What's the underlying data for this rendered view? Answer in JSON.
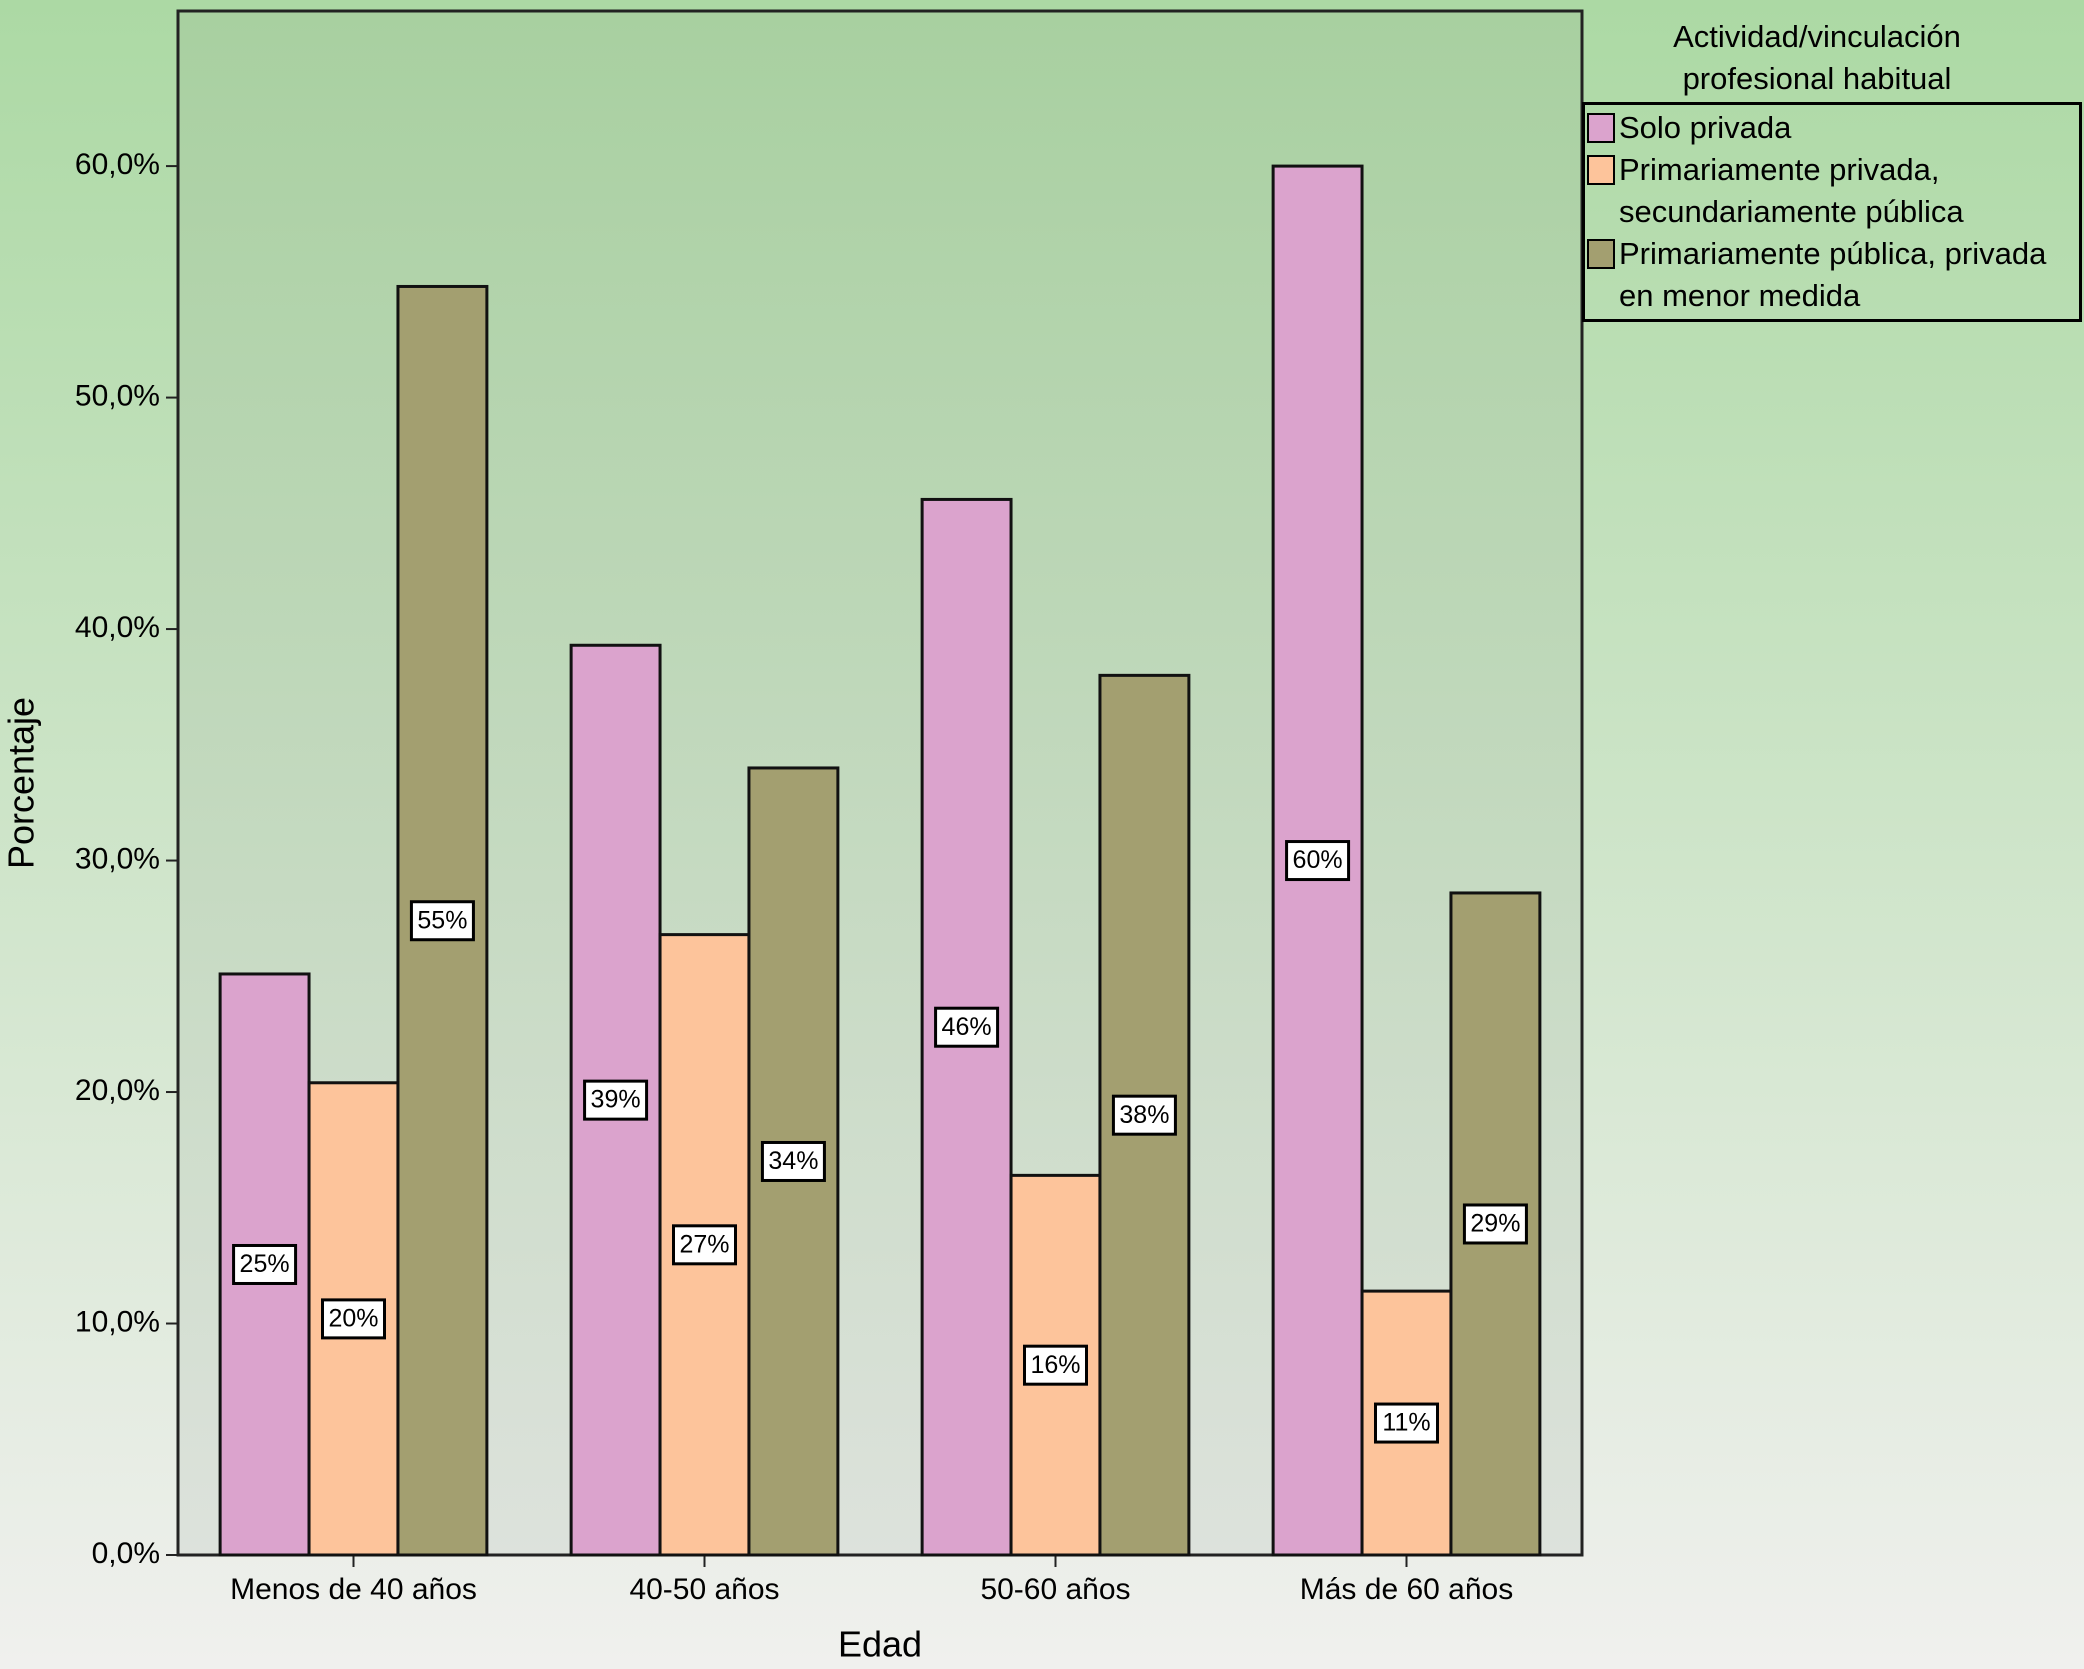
{
  "chart_data": {
    "type": "bar",
    "x_label": "Edad",
    "y_label": "Porcentaje",
    "legend_title": [
      "Actividad/vinculación",
      "profesional habitual"
    ],
    "categories": [
      "Menos de 40 años",
      "40-50 años",
      "50-60 años",
      "Más de 60 años"
    ],
    "series": [
      {
        "name": "Solo privada",
        "color": "#dba3cd",
        "values": [
          25.1,
          39.3,
          45.6,
          60.0
        ],
        "value_labels": [
          "25%",
          "39%",
          "46%",
          "60%"
        ]
      },
      {
        "name": "Primariamente privada, secundariamente pública",
        "color": "#fdc49b",
        "values": [
          20.4,
          26.8,
          16.4,
          11.4
        ],
        "value_labels": [
          "20%",
          "27%",
          "16%",
          "11%"
        ]
      },
      {
        "name": "Primariamente pública, privada en menor medida",
        "color": "#a39f70",
        "values": [
          54.8,
          34.0,
          38.0,
          28.6
        ],
        "value_labels": [
          "55%",
          "34%",
          "38%",
          "29%"
        ]
      }
    ],
    "ylim": [
      0,
      66.7
    ],
    "yticks": [
      {
        "value": 0,
        "label": "0,0%"
      },
      {
        "value": 10,
        "label": "10,0%"
      },
      {
        "value": 20,
        "label": "20,0%"
      },
      {
        "value": 30,
        "label": "30,0%"
      },
      {
        "value": 40,
        "label": "40,0%"
      },
      {
        "value": 50,
        "label": "50,0%"
      },
      {
        "value": 60,
        "label": "60,0%"
      }
    ],
    "legend_position": "top-right"
  }
}
